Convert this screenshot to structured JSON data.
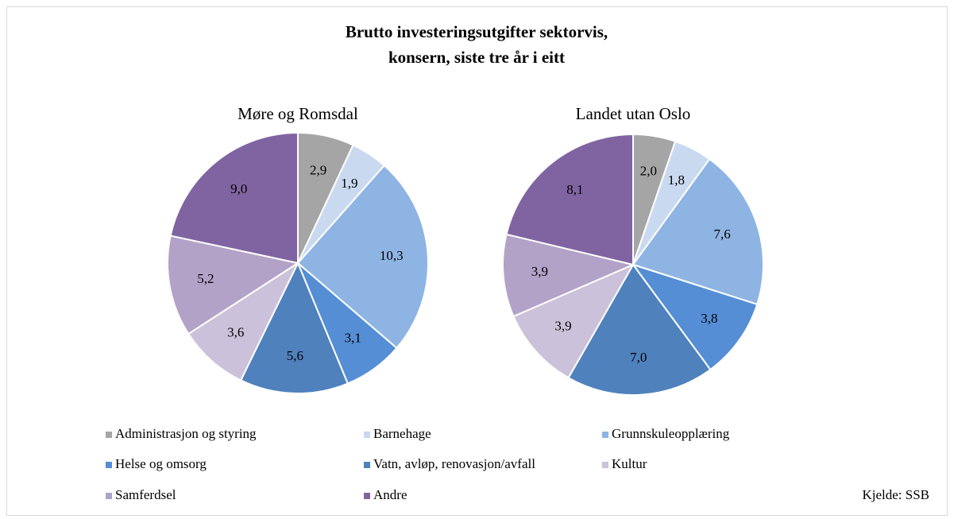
{
  "title": [
    "Brutto investeringsutgifter sektorvis,",
    "konsern, siste tre år i eitt"
  ],
  "source": "Kjelde: SSB",
  "legend": {
    "categories": [
      "Administrasjon og styring",
      "Barnehage",
      "Grunnskuleopplæring",
      "Helse og omsorg",
      "Vatn, avløp, renovasjon/avfall",
      "Kultur",
      "Samferdsel",
      "Andre"
    ],
    "colors": [
      "#a5a5a5",
      "#c9d9f0",
      "#8eb4e3",
      "#558ed5",
      "#4f81bd",
      "#ccc1da",
      "#b3a2c7",
      "#8064a2"
    ]
  },
  "chart_data": [
    {
      "type": "pie",
      "title": "Møre og Romsdal",
      "values": [
        2.9,
        1.9,
        10.3,
        3.1,
        5.6,
        3.6,
        5.2,
        9.0
      ],
      "value_labels": [
        "2,9",
        "1,9",
        "10,3",
        "3,1",
        "5,6",
        "3,6",
        "5,2",
        "9,0"
      ]
    },
    {
      "type": "pie",
      "title": "Landet utan Oslo",
      "values": [
        2.0,
        1.8,
        7.6,
        3.8,
        7.0,
        3.9,
        3.9,
        8.1
      ],
      "value_labels": [
        "2,0",
        "1,8",
        "7,6",
        "3,8",
        "7,0",
        "3,9",
        "3,9",
        "8,1"
      ]
    }
  ]
}
